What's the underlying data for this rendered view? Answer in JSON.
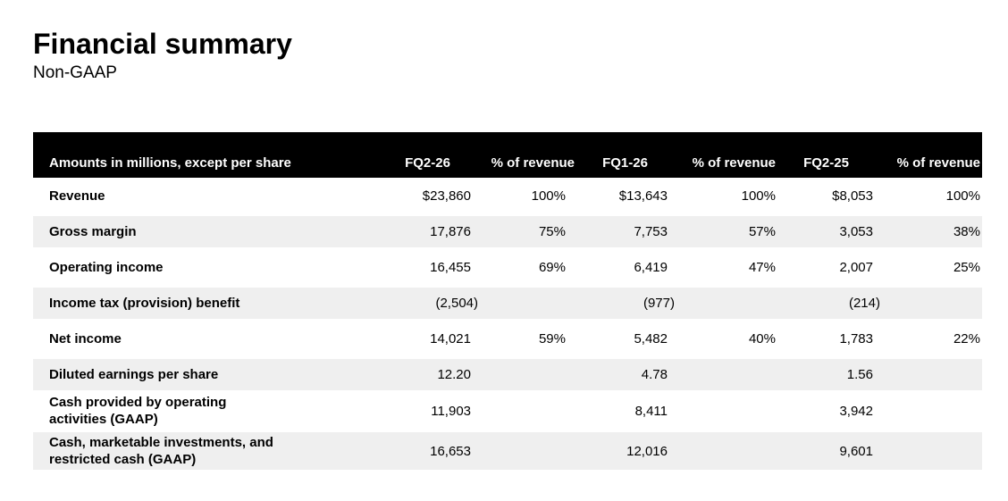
{
  "slide": {
    "title": "Financial summary",
    "subtitle": "Non-GAAP"
  },
  "table": {
    "columns": [
      "Amounts in millions, except per share",
      "FQ2-26",
      "% of revenue",
      "FQ1-26",
      "% of revenue",
      "FQ2-25",
      "% of revenue"
    ],
    "rows": [
      {
        "label": "Revenue",
        "values": [
          "$23,860",
          "100%",
          "$13,643",
          "100%",
          "$8,053",
          "100%"
        ]
      },
      {
        "label": "Gross margin",
        "values": [
          "17,876",
          "75%",
          "7,753",
          "57%",
          "3,053",
          "38%"
        ]
      },
      {
        "label": "Operating income",
        "values": [
          "16,455",
          "69%",
          "6,419",
          "47%",
          "2,007",
          "25%"
        ]
      },
      {
        "label": "Income tax (provision) benefit",
        "values": [
          "(2,504)",
          "",
          "(977)",
          "",
          "(214)",
          ""
        ]
      },
      {
        "label": "Net income",
        "values": [
          "14,021",
          "59%",
          "5,482",
          "40%",
          "1,783",
          "22%"
        ]
      },
      {
        "label": "Diluted earnings per share",
        "values": [
          "12.20",
          "",
          "4.78",
          "",
          "1.56",
          ""
        ]
      },
      {
        "label": "Cash provided by operating\nactivities (GAAP)",
        "values": [
          "11,903",
          "",
          "8,411",
          "",
          "3,942",
          ""
        ]
      },
      {
        "label": "Cash, marketable investments, and\nrestricted cash (GAAP)",
        "values": [
          "16,653",
          "",
          "12,016",
          "",
          "9,601",
          ""
        ]
      }
    ]
  },
  "colors": {
    "header_bg": "#000000",
    "header_text": "#ffffff",
    "stripe": "#efefef",
    "body_text": "#000000",
    "background": "#ffffff"
  }
}
